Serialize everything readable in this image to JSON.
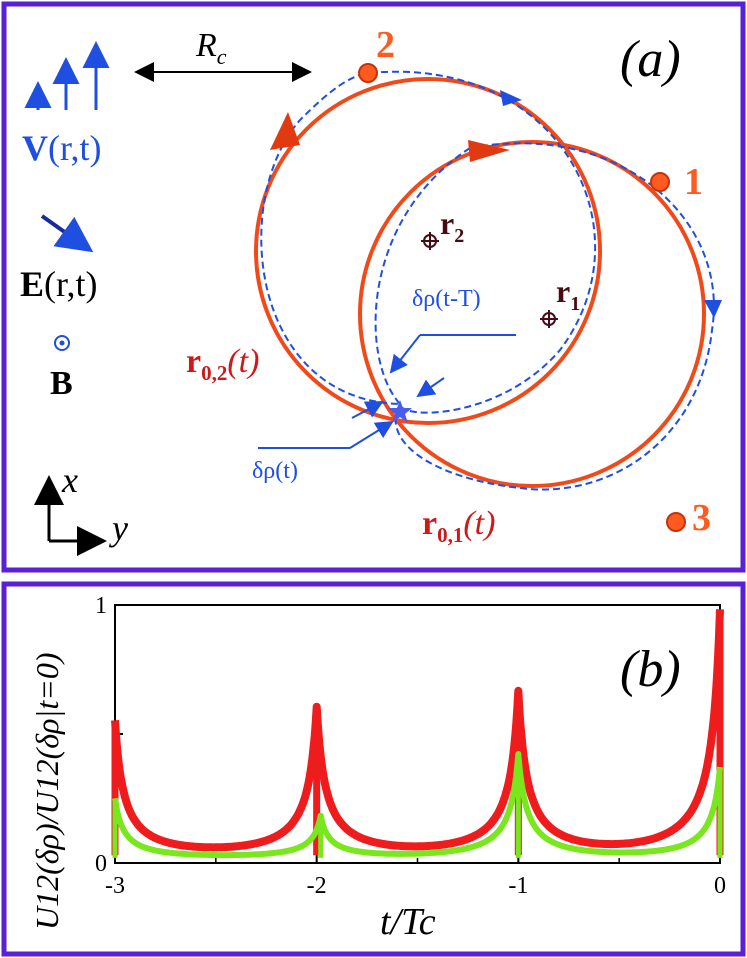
{
  "panel_a": {
    "label": "(a)",
    "rc_label": "R",
    "rc_sub": "c",
    "v_label_bold": "V",
    "v_label_rest": "(r,t)",
    "e_label_bold": "E",
    "e_label_rest": "(r,t)",
    "b_label": "B",
    "axis_x": "x",
    "axis_y": "y",
    "points": [
      "1",
      "2",
      "3"
    ],
    "r1_label": "r",
    "r1_sub": "1",
    "r2_label": "r",
    "r2_sub": "2",
    "orbit1_label": "r",
    "orbit1_sub": "0,1",
    "orbit1_rest": "(t)",
    "orbit2_label": "r",
    "orbit2_sub": "0,2",
    "orbit2_rest": "(t)",
    "drho_t": "δρ(t)",
    "drho_tT": "δρ(t-T)",
    "colors": {
      "frame": "#5a1fd6",
      "orbit": "#f04a1a",
      "dashed": "#1f4fe0",
      "point": "#ff5a1f"
    }
  },
  "panel_b": {
    "label": "(b)",
    "ylabel": "U12(δρ)/U12(δρ|t=0)",
    "xlabel": "t/Tc",
    "chart_data": {
      "type": "line",
      "x_range": [
        -3,
        0
      ],
      "y_range": [
        0,
        1
      ],
      "x_ticks": [
        "-3",
        "-2",
        "-1",
        "0"
      ],
      "y_ticks": [
        "0",
        "1"
      ],
      "series": [
        {
          "color": "#ee1c1c",
          "peaks": [
            {
              "x": -3.0,
              "y": 0.55
            },
            {
              "x": -2.0,
              "y": 0.6
            },
            {
              "x": -1.0,
              "y": 0.66
            },
            {
              "x": 0.0,
              "y": 0.98
            }
          ],
          "baseline": 0.03
        },
        {
          "color": "#7ae61e",
          "peaks": [
            {
              "x": -3.0,
              "y": 0.25
            },
            {
              "x": -1.98,
              "y": 0.18
            },
            {
              "x": -1.0,
              "y": 0.42
            },
            {
              "x": 0.0,
              "y": 0.37
            }
          ],
          "baseline": 0.02
        }
      ]
    }
  }
}
